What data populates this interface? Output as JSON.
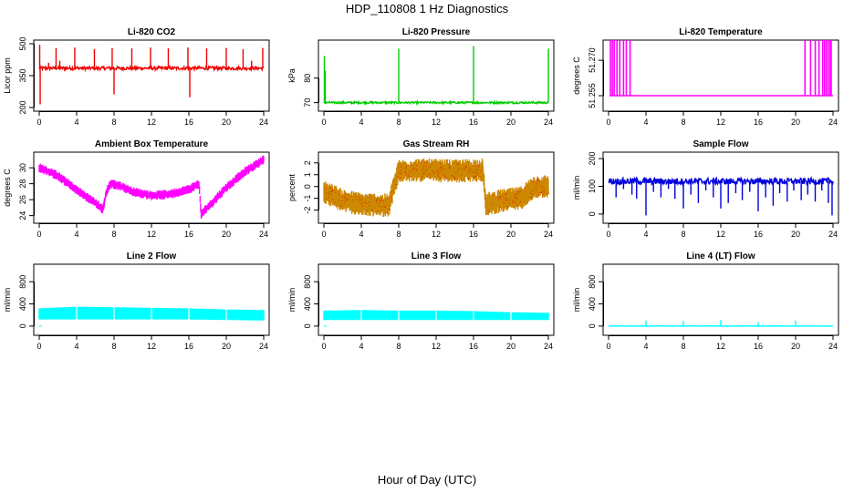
{
  "figure": {
    "title": "HDP_110808  1 Hz Diagnostics",
    "xlabel": "Hour of Day (UTC)"
  },
  "chart_data": [
    {
      "type": "line",
      "title": "Li-820 CO2",
      "ylabel": "Licor ppm",
      "color": "#ee0000",
      "xlim": [
        0,
        24
      ],
      "ylim": [
        200,
        500
      ],
      "xticks": [
        0,
        4,
        8,
        12,
        16,
        20,
        24
      ],
      "yticks": [
        200,
        350,
        500
      ],
      "ytick_labels": [
        "200",
        "350",
        "500"
      ],
      "baseline": 385,
      "noise": 8,
      "spikes": [
        [
          0.05,
          495
        ],
        [
          0.1,
          215
        ],
        [
          1.0,
          410
        ],
        [
          1.8,
          480
        ],
        [
          2.2,
          420
        ],
        [
          3.8,
          482
        ],
        [
          5.9,
          475
        ],
        [
          7.8,
          480
        ],
        [
          8.0,
          262
        ],
        [
          9.9,
          478
        ],
        [
          11.9,
          482
        ],
        [
          13.8,
          478
        ],
        [
          15.9,
          482
        ],
        [
          16.1,
          248
        ],
        [
          17.9,
          478
        ],
        [
          20.0,
          480
        ],
        [
          21.8,
          475
        ],
        [
          22.7,
          420
        ],
        [
          23.9,
          480
        ]
      ]
    },
    {
      "type": "line",
      "title": "Li-820 Pressure",
      "ylabel": "kPa",
      "color": "#00cc00",
      "xlim": [
        0,
        24
      ],
      "ylim": [
        68,
        94
      ],
      "xticks": [
        0,
        4,
        8,
        12,
        16,
        20,
        24
      ],
      "yticks": [
        70,
        80
      ],
      "ytick_labels": [
        "70",
        "80"
      ],
      "baseline": 70,
      "noise": 0.4,
      "spikes": [
        [
          0.05,
          89
        ],
        [
          0.15,
          83
        ],
        [
          8.0,
          92
        ],
        [
          16.0,
          93
        ],
        [
          24.0,
          92
        ]
      ]
    },
    {
      "type": "line",
      "title": "Li-820 Temperature",
      "ylabel": "degrees C",
      "color": "#ff00ff",
      "xlim": [
        0,
        24
      ],
      "ylim": [
        51.25,
        51.277
      ],
      "xticks": [
        0,
        4,
        8,
        12,
        16,
        20,
        24
      ],
      "yticks": [
        51.255,
        51.27
      ],
      "ytick_labels": [
        "51.255",
        "51.270"
      ],
      "baseline": 51.255,
      "noise": 0,
      "steps": [
        0.2,
        0.4,
        0.6,
        0.9,
        1.2,
        1.6,
        1.9,
        2.3,
        21.0,
        21.6,
        22.1,
        22.5,
        22.9,
        23.1,
        23.3,
        23.5,
        23.7,
        23.8
      ]
    },
    {
      "type": "line",
      "title": "Ambient Box Temperature",
      "ylabel": "degrees C",
      "color": "#ff00ff",
      "xlim": [
        0,
        24
      ],
      "ylim": [
        23.5,
        31.5
      ],
      "xticks": [
        0,
        4,
        8,
        12,
        16,
        20,
        24
      ],
      "yticks": [
        24,
        26,
        28,
        30
      ],
      "ytick_labels": [
        "24",
        "26",
        "28",
        "30"
      ],
      "curve": [
        [
          0,
          30.0
        ],
        [
          2,
          29.0
        ],
        [
          4,
          27.2
        ],
        [
          5.5,
          26.0
        ],
        [
          6.6,
          25.0
        ],
        [
          6.8,
          24.8
        ],
        [
          7.2,
          27.0
        ],
        [
          7.6,
          28.0
        ],
        [
          8.5,
          27.8
        ],
        [
          10,
          27.0
        ],
        [
          12,
          26.5
        ],
        [
          14,
          26.7
        ],
        [
          16,
          27.3
        ],
        [
          17.1,
          28.0
        ],
        [
          17.3,
          24.2
        ],
        [
          18,
          25.0
        ],
        [
          20,
          27.5
        ],
        [
          22,
          29.5
        ],
        [
          24,
          31.0
        ]
      ],
      "noise": 0.6
    },
    {
      "type": "line",
      "title": "Gas Stream RH",
      "ylabel": "percent",
      "color": "#cc8800",
      "xlim": [
        0,
        24
      ],
      "ylim": [
        -2.8,
        2.6
      ],
      "xticks": [
        0,
        4,
        8,
        12,
        16,
        20,
        24
      ],
      "yticks": [
        -2,
        -1,
        0,
        1,
        2
      ],
      "ytick_labels": [
        "-2",
        "-1",
        "0",
        "1",
        "2"
      ],
      "curve": [
        [
          0,
          -0.4
        ],
        [
          2,
          -1.2
        ],
        [
          4,
          -1.5
        ],
        [
          7.0,
          -1.6
        ],
        [
          7.3,
          -0.5
        ],
        [
          8.0,
          1.3
        ],
        [
          10,
          1.4
        ],
        [
          14,
          1.3
        ],
        [
          17.0,
          1.4
        ],
        [
          17.3,
          -1.5
        ],
        [
          19,
          -1.2
        ],
        [
          21,
          -1.0
        ],
        [
          22.5,
          0.0
        ],
        [
          24,
          0.0
        ]
      ],
      "noise": 1.0
    },
    {
      "type": "line",
      "title": "Sample Flow",
      "ylabel": "ml/min",
      "color": "#0000dd",
      "xlim": [
        0,
        24
      ],
      "ylim": [
        -20,
        210
      ],
      "xticks": [
        0,
        4,
        8,
        12,
        16,
        20,
        24
      ],
      "yticks": [
        0,
        100,
        200
      ],
      "ytick_labels": [
        "0",
        "100",
        "200"
      ],
      "baseline": 118,
      "noise": 12,
      "spikes": [
        [
          0.8,
          60
        ],
        [
          1.6,
          90
        ],
        [
          2.5,
          70
        ],
        [
          3.0,
          55
        ],
        [
          4.0,
          -5
        ],
        [
          4.8,
          80
        ],
        [
          5.6,
          60
        ],
        [
          6.4,
          90
        ],
        [
          7.1,
          55
        ],
        [
          8.0,
          20
        ],
        [
          8.8,
          70
        ],
        [
          9.6,
          40
        ],
        [
          10.4,
          85
        ],
        [
          11.2,
          60
        ],
        [
          12.0,
          20
        ],
        [
          12.8,
          40
        ],
        [
          13.6,
          75
        ],
        [
          14.3,
          50
        ],
        [
          15.1,
          80
        ],
        [
          16.0,
          10
        ],
        [
          16.8,
          60
        ],
        [
          17.6,
          30
        ],
        [
          18.3,
          75
        ],
        [
          19.1,
          45
        ],
        [
          19.8,
          85
        ],
        [
          20.6,
          50
        ],
        [
          21.3,
          70
        ],
        [
          22.1,
          45
        ],
        [
          22.8,
          85
        ],
        [
          23.5,
          40
        ],
        [
          23.9,
          -5
        ]
      ]
    },
    {
      "type": "line",
      "title": "Line 2 Flow",
      "ylabel": "ml/min",
      "color": "#00ffff",
      "xlim": [
        0,
        24
      ],
      "ylim": [
        -100,
        1050
      ],
      "xticks": [
        0,
        4,
        8,
        12,
        16,
        20,
        24
      ],
      "yticks": [
        0,
        400,
        800
      ],
      "ytick_labels": [
        "0",
        "400",
        "800"
      ],
      "band": [
        [
          0,
          120,
          320
        ],
        [
          4,
          120,
          350
        ],
        [
          8,
          120,
          340
        ],
        [
          12,
          120,
          330
        ],
        [
          16,
          120,
          320
        ],
        [
          20,
          110,
          300
        ],
        [
          24,
          100,
          290
        ]
      ],
      "gaps": [
        4.0,
        8.0,
        12.0,
        16.0,
        20.0
      ]
    },
    {
      "type": "line",
      "title": "Line 3 Flow",
      "ylabel": "ml/min",
      "color": "#00ffff",
      "xlim": [
        0,
        24
      ],
      "ylim": [
        -100,
        1050
      ],
      "xticks": [
        0,
        4,
        8,
        12,
        16,
        20,
        24
      ],
      "yticks": [
        0,
        400,
        800
      ],
      "ytick_labels": [
        "0",
        "400",
        "800"
      ],
      "band": [
        [
          0,
          110,
          280
        ],
        [
          4,
          110,
          290
        ],
        [
          8,
          110,
          280
        ],
        [
          12,
          110,
          280
        ],
        [
          16,
          110,
          270
        ],
        [
          20,
          110,
          250
        ],
        [
          24,
          110,
          240
        ]
      ],
      "gaps": [
        4.0,
        8.0,
        12.0,
        16.0,
        20.0
      ]
    },
    {
      "type": "line",
      "title": "Line 4 (LT) Flow",
      "ylabel": "ml/min",
      "color": "#00ffff",
      "xlim": [
        0,
        24
      ],
      "ylim": [
        -100,
        1050
      ],
      "xticks": [
        0,
        4,
        8,
        12,
        16,
        20,
        24
      ],
      "yticks": [
        0,
        400,
        800
      ],
      "ytick_labels": [
        "0",
        "400",
        "800"
      ],
      "baseline": 2,
      "noise": 4,
      "spikes": [
        [
          4.0,
          100
        ],
        [
          8.0,
          90
        ],
        [
          12.0,
          110
        ],
        [
          16.0,
          70
        ],
        [
          20.0,
          100
        ]
      ]
    }
  ]
}
